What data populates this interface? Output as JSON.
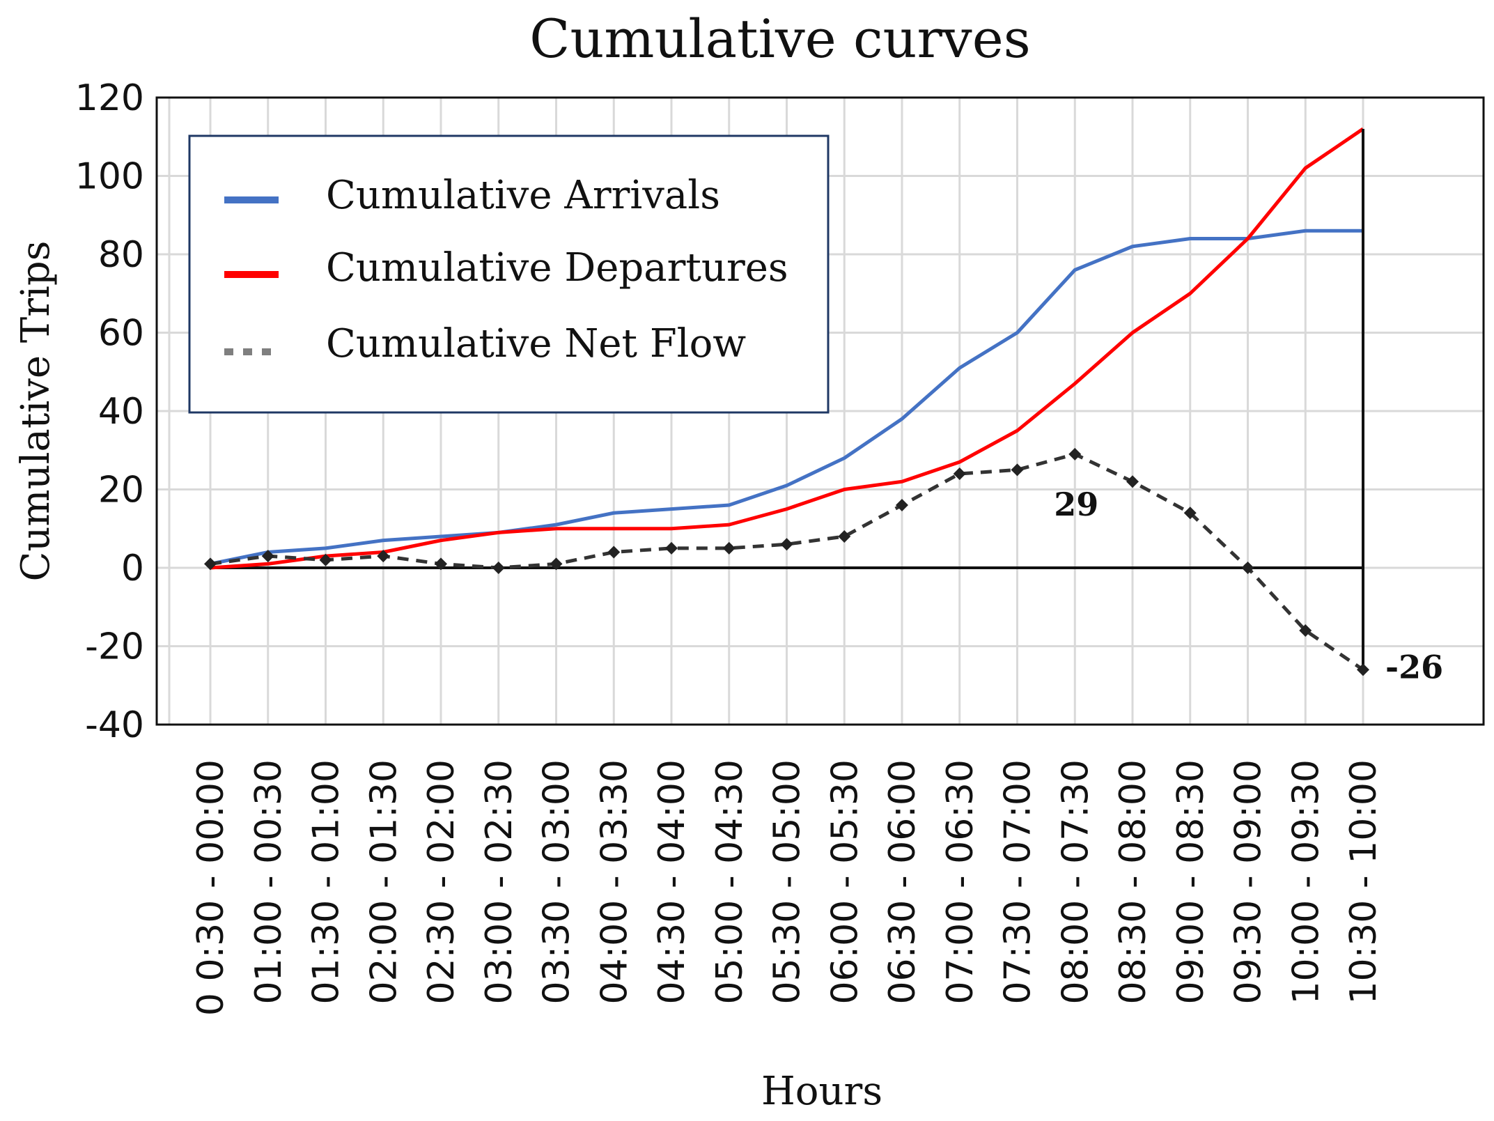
{
  "chart_data": {
    "type": "line",
    "title": "Cumulative curves",
    "xlabel": "Hours",
    "ylabel": "Cumulative Trips",
    "ylim": [
      -40,
      120
    ],
    "yticks": [
      120,
      100,
      80,
      60,
      40,
      20,
      0,
      -20,
      -40
    ],
    "grid": true,
    "legend_position": "top-left",
    "categories": [
      "0 0:30 - 00:00",
      "01:00 - 00:30",
      "01:30 - 01:00",
      "02:00 - 01:30",
      "02:30 - 02:00",
      "03:00 - 02:30",
      "03:30 - 03:00",
      "04:00 - 03:30",
      "04:30 - 04:00",
      "05:00 - 04:30",
      "05:30 - 05:00",
      "06:00 - 05:30",
      "06:30 - 06:00",
      "07:00 - 06:30",
      "07:30 - 07:00",
      "08:00 - 07:30",
      "08:30 - 08:00",
      "09:00 - 08:30",
      "09:30 - 09:00",
      "10:00 - 09:30",
      "10:30 - 10:00"
    ],
    "series": [
      {
        "name": "Cumulative Arrivals",
        "color": "#4472C4",
        "style": "solid",
        "values": [
          1,
          4,
          5,
          7,
          8,
          9,
          11,
          14,
          15,
          16,
          21,
          28,
          38,
          51,
          60,
          76,
          82,
          84,
          84,
          86,
          86
        ]
      },
      {
        "name": "Cumulative Departures",
        "color": "#FF0000",
        "style": "solid",
        "values": [
          0,
          1,
          3,
          4,
          7,
          9,
          10,
          10,
          10,
          11,
          15,
          20,
          22,
          27,
          35,
          47,
          60,
          70,
          84,
          102,
          112
        ]
      },
      {
        "name": "Cumulative Net Flow",
        "color": "#333333",
        "legend_color": "#7f7f7f",
        "style": "dashed",
        "values": [
          1,
          3,
          2,
          3,
          1,
          0,
          1,
          4,
          5,
          5,
          6,
          8,
          16,
          24,
          25,
          29,
          22,
          14,
          0,
          -16,
          -26
        ]
      }
    ],
    "annotations": [
      {
        "text": "29",
        "category_index": 15,
        "value": 29
      },
      {
        "text": "-26",
        "category_index": 20,
        "value": -26
      }
    ]
  }
}
